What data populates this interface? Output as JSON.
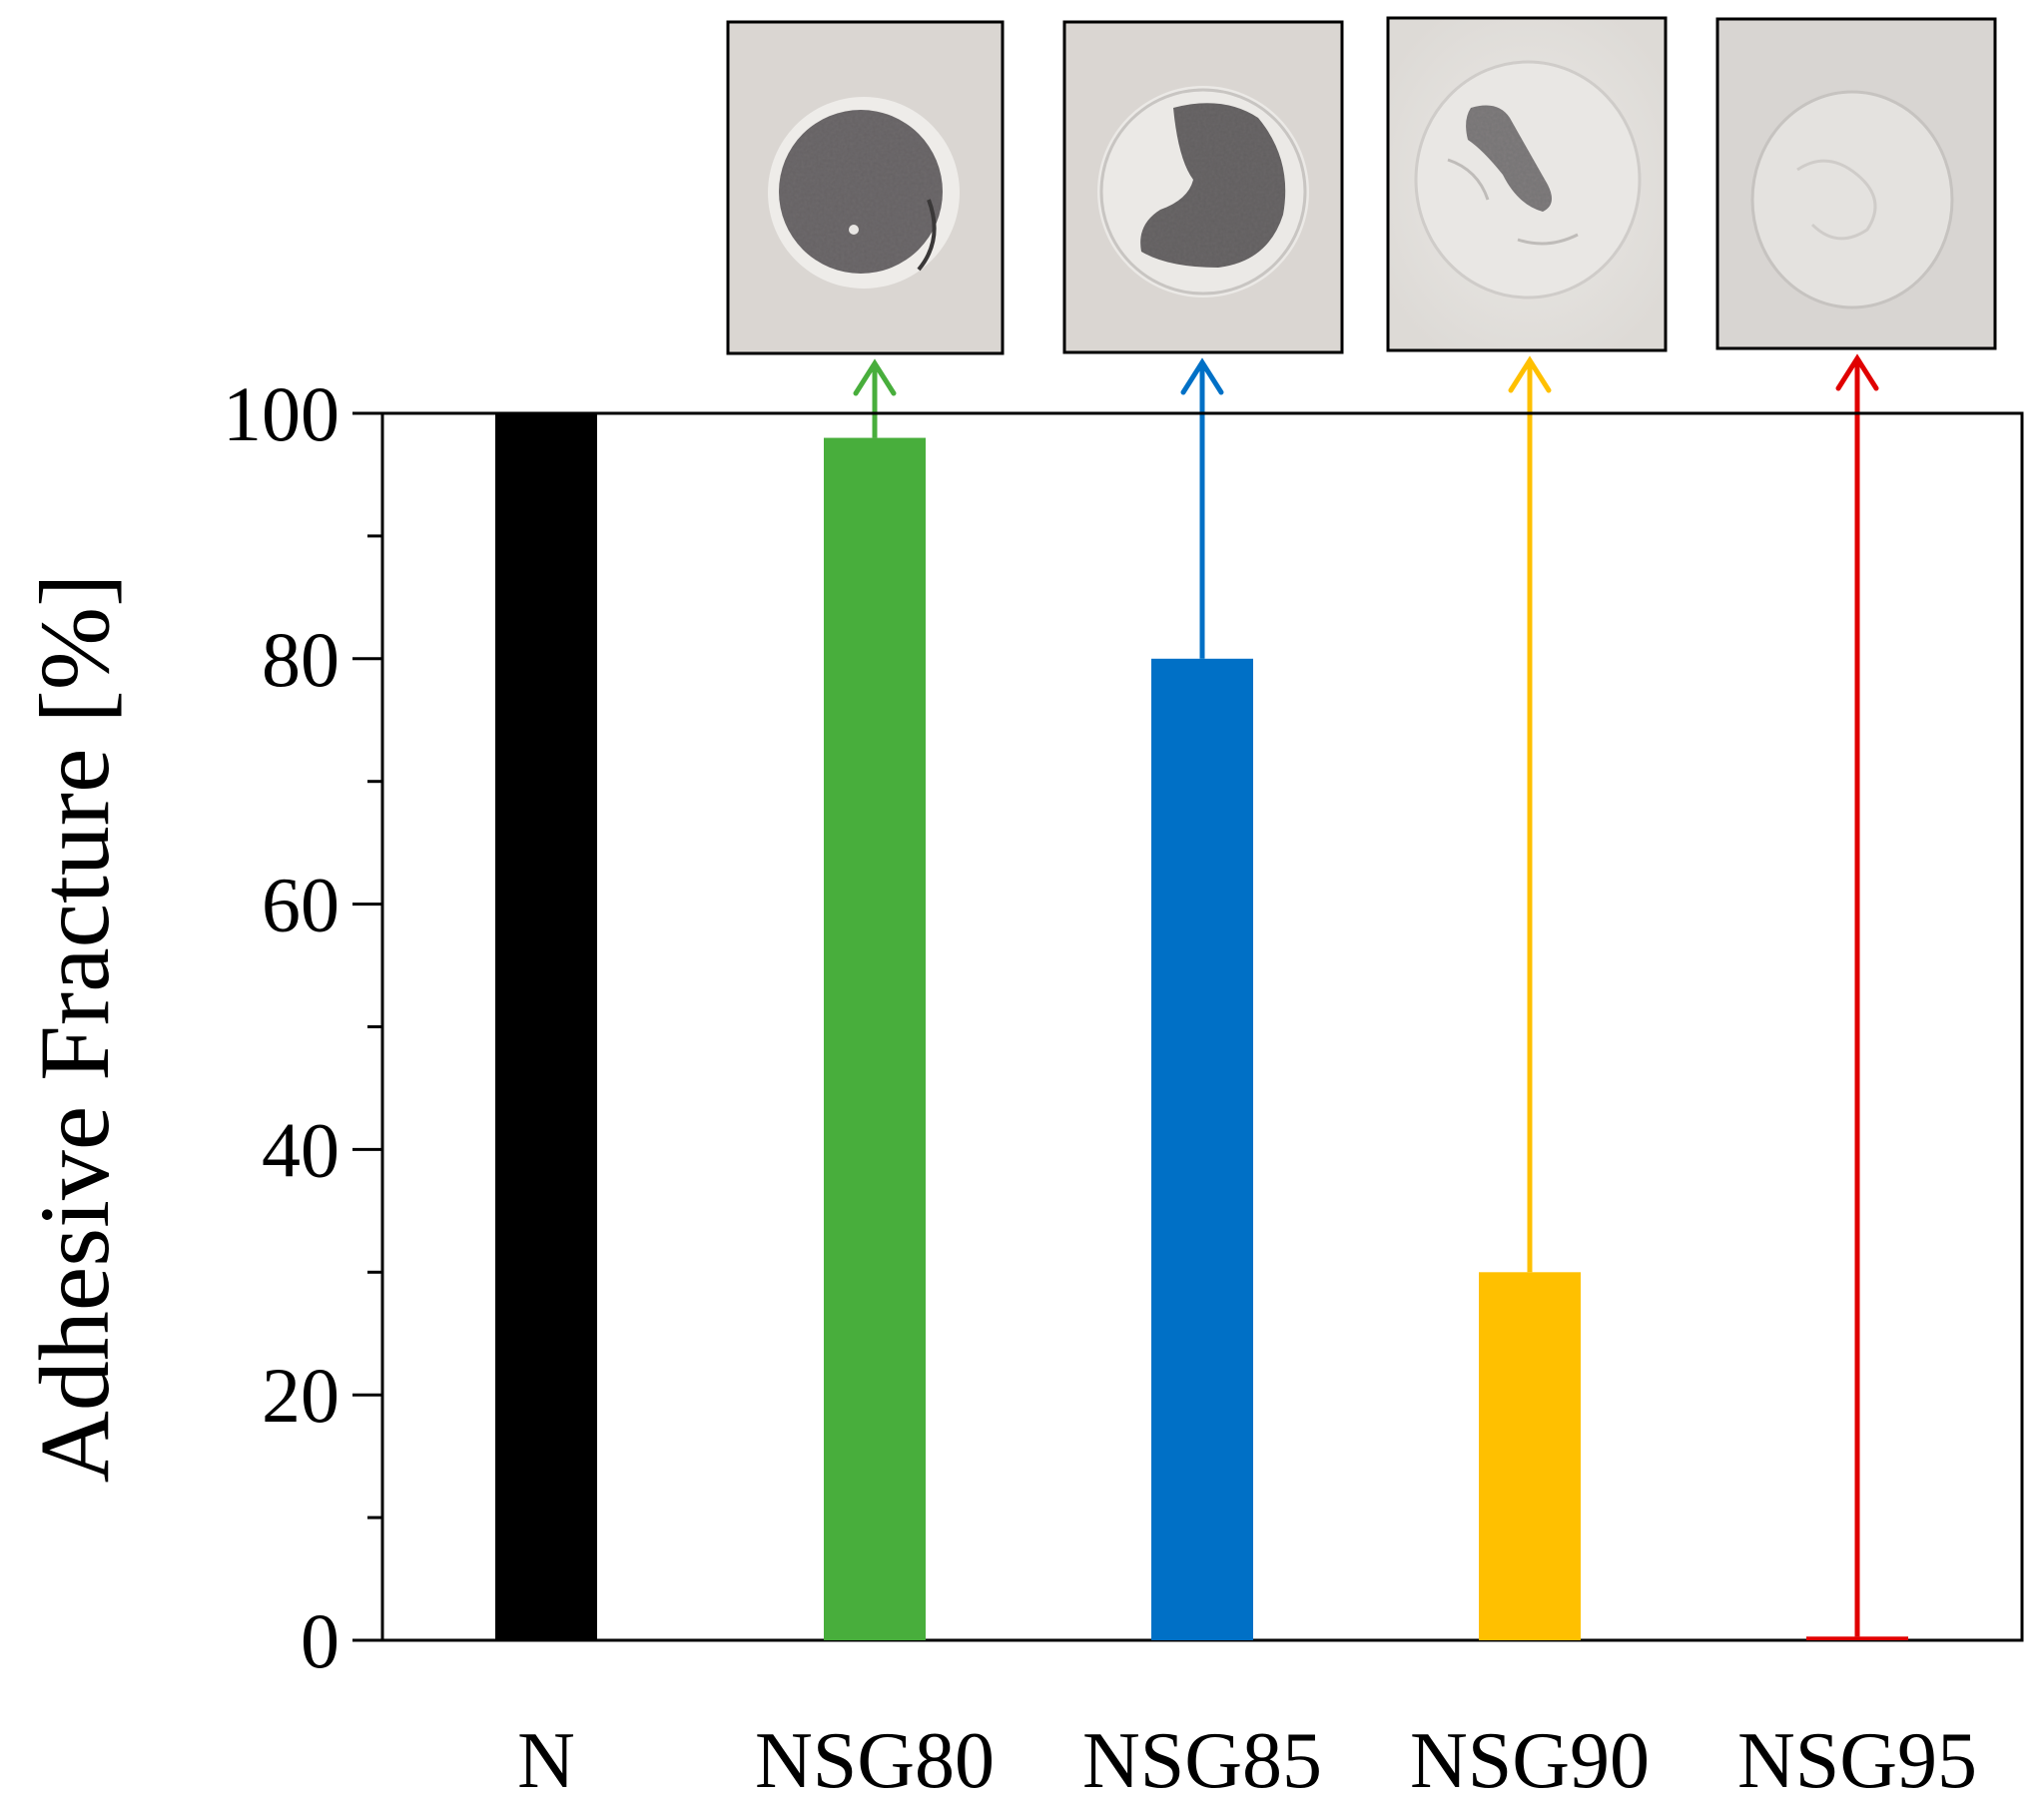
{
  "chart_data": {
    "type": "bar",
    "categories": [
      "N",
      "NSG80",
      "NSG85",
      "NSG90",
      "NSG95"
    ],
    "values": [
      100,
      98,
      80,
      30,
      0.3
    ],
    "colors": [
      "#000000",
      "#48ae3c",
      "#0070c6",
      "#ffc000",
      "#e00000"
    ],
    "ylabel": "Adhesive Fracture [%]",
    "ylim": [
      0,
      100
    ],
    "yticks": [
      0,
      20,
      40,
      60,
      80,
      100
    ],
    "grid": false,
    "legend": "none",
    "insets": [
      {
        "category": "NSG80",
        "shows": "fracture-surface-photo",
        "connector_color": "#48ae3c"
      },
      {
        "category": "NSG85",
        "shows": "fracture-surface-photo",
        "connector_color": "#0070c6"
      },
      {
        "category": "NSG90",
        "shows": "fracture-surface-photo",
        "connector_color": "#ffc000"
      },
      {
        "category": "NSG95",
        "shows": "fracture-surface-photo",
        "connector_color": "#e00000"
      }
    ]
  }
}
